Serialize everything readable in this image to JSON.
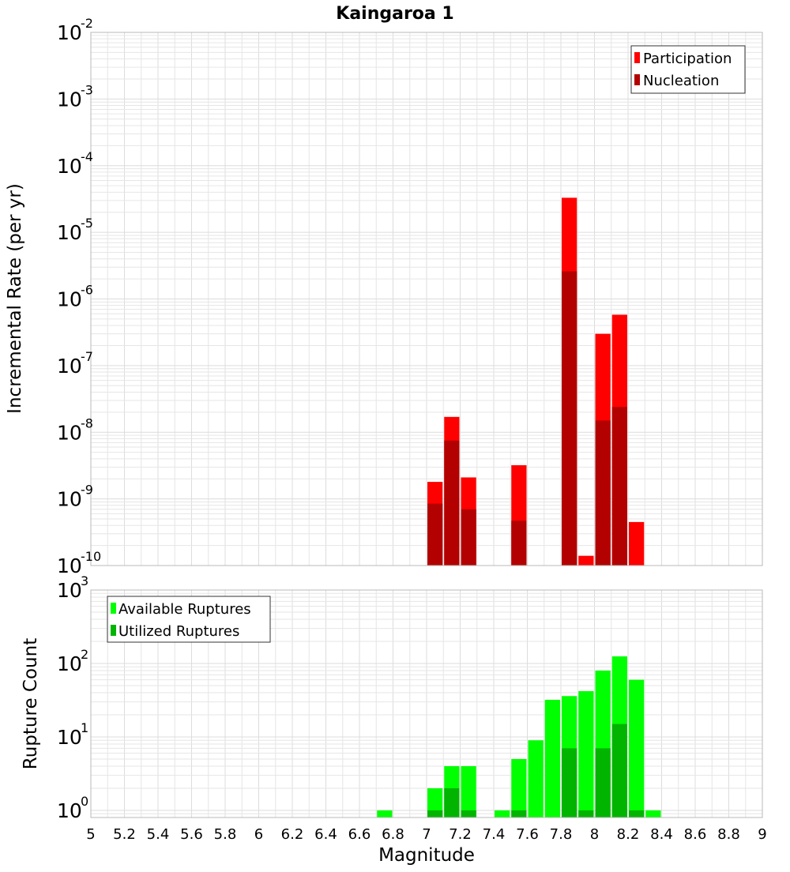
{
  "chart_data": [
    {
      "type": "bar",
      "title": "Kaingaroa 1",
      "xlabel": "",
      "ylabel": "Incremental Rate (per yr)",
      "yscale": "log",
      "ylim": [
        1e-10,
        0.01
      ],
      "xlim": [
        5,
        9
      ],
      "bar_width": 0.1,
      "grid": true,
      "legend_position": "top-right",
      "series": [
        {
          "name": "Participation",
          "color": "#ff0000",
          "points": [
            {
              "x": 7.05,
              "y": 1.8e-09
            },
            {
              "x": 7.15,
              "y": 1.7e-08
            },
            {
              "x": 7.25,
              "y": 2.1e-09
            },
            {
              "x": 7.55,
              "y": 3.2e-09
            },
            {
              "x": 7.85,
              "y": 3.3e-05
            },
            {
              "x": 7.95,
              "y": 1.4e-10
            },
            {
              "x": 8.05,
              "y": 3e-07
            },
            {
              "x": 8.15,
              "y": 5.8e-07
            },
            {
              "x": 8.25,
              "y": 4.5e-10
            }
          ]
        },
        {
          "name": "Nucleation",
          "color": "#b30000",
          "points": [
            {
              "x": 7.05,
              "y": 8.5e-10
            },
            {
              "x": 7.15,
              "y": 7.5e-09
            },
            {
              "x": 7.25,
              "y": 7e-10
            },
            {
              "x": 7.55,
              "y": 4.7e-10
            },
            {
              "x": 7.85,
              "y": 2.6e-06
            },
            {
              "x": 8.05,
              "y": 1.5e-08
            },
            {
              "x": 8.15,
              "y": 2.4e-08
            }
          ]
        }
      ]
    },
    {
      "type": "bar",
      "title": "",
      "xlabel": "Magnitude",
      "ylabel": "Rupture Count",
      "yscale": "log",
      "ylim": [
        0.8,
        1000
      ],
      "xlim": [
        5,
        9
      ],
      "bar_width": 0.1,
      "grid": true,
      "legend_position": "top-left",
      "x_ticks": [
        "5",
        "5.2",
        "5.4",
        "5.6",
        "5.8",
        "6",
        "6.2",
        "6.4",
        "6.6",
        "6.8",
        "7",
        "7.2",
        "7.4",
        "7.6",
        "7.8",
        "8",
        "8.2",
        "8.4",
        "8.6",
        "8.8",
        "9"
      ],
      "series": [
        {
          "name": "Available Ruptures",
          "color": "#00ff00",
          "points": [
            {
              "x": 6.75,
              "y": 1
            },
            {
              "x": 7.05,
              "y": 2
            },
            {
              "x": 7.15,
              "y": 4
            },
            {
              "x": 7.25,
              "y": 4
            },
            {
              "x": 7.45,
              "y": 1
            },
            {
              "x": 7.55,
              "y": 5
            },
            {
              "x": 7.65,
              "y": 9
            },
            {
              "x": 7.75,
              "y": 32
            },
            {
              "x": 7.85,
              "y": 36
            },
            {
              "x": 7.95,
              "y": 42
            },
            {
              "x": 8.05,
              "y": 80
            },
            {
              "x": 8.15,
              "y": 125
            },
            {
              "x": 8.25,
              "y": 60
            },
            {
              "x": 8.35,
              "y": 1
            }
          ]
        },
        {
          "name": "Utilized Ruptures",
          "color": "#00b400",
          "points": [
            {
              "x": 7.05,
              "y": 1
            },
            {
              "x": 7.15,
              "y": 2
            },
            {
              "x": 7.25,
              "y": 1
            },
            {
              "x": 7.55,
              "y": 1
            },
            {
              "x": 7.85,
              "y": 7
            },
            {
              "x": 7.95,
              "y": 1
            },
            {
              "x": 8.05,
              "y": 7
            },
            {
              "x": 8.15,
              "y": 15
            },
            {
              "x": 8.25,
              "y": 1
            }
          ]
        }
      ]
    }
  ]
}
